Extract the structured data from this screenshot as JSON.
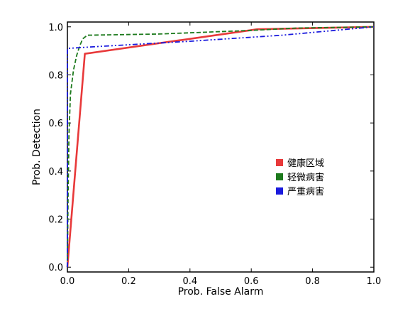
{
  "chart_data": {
    "type": "line",
    "xlabel": "Prob. False Alarm",
    "ylabel": "Prob. Detection",
    "xlim": [
      0,
      1
    ],
    "ylim": [
      -0.02,
      1.02
    ],
    "x_ticks": [
      0.0,
      0.2,
      0.4,
      0.6,
      0.8,
      1.0
    ],
    "y_ticks": [
      0.0,
      0.2,
      0.4,
      0.6,
      0.8,
      1.0
    ],
    "x_tick_labels": [
      "0.0",
      "0.2",
      "0.4",
      "0.6",
      "0.8",
      "1.0"
    ],
    "y_tick_labels": [
      "0.0",
      "0.2",
      "0.4",
      "0.6",
      "0.8",
      "1.0"
    ],
    "grid": false,
    "legend_position": "center-right",
    "series": [
      {
        "name": "健康区域",
        "color": "#e8393a",
        "style": "solid",
        "x": [
          0.0,
          0.057,
          0.62,
          1.0
        ],
        "y": [
          0.0,
          0.888,
          0.99,
          1.0
        ]
      },
      {
        "name": "轻微病害",
        "color": "#1d7a1d",
        "style": "dashed",
        "x": [
          0.0,
          0.002,
          0.005,
          0.01,
          0.02,
          0.03,
          0.04,
          0.05,
          0.065,
          0.3,
          0.6,
          0.75,
          1.0
        ],
        "y": [
          0.0,
          0.28,
          0.55,
          0.72,
          0.82,
          0.88,
          0.92,
          0.95,
          0.965,
          0.97,
          0.985,
          0.995,
          1.0
        ]
      },
      {
        "name": "严重病害",
        "color": "#1a1add",
        "style": "dashdot",
        "x": [
          0.0,
          0.0,
          0.1,
          0.4,
          0.7,
          1.0
        ],
        "y": [
          0.0,
          0.91,
          0.918,
          0.94,
          0.965,
          1.0
        ]
      }
    ]
  }
}
